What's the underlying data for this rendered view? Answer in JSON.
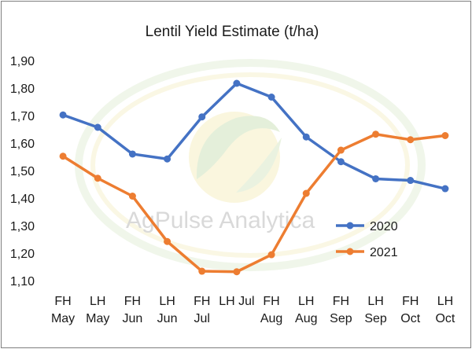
{
  "chart_data": {
    "type": "line",
    "title": "Lentil Yield Estimate  (t/ha)",
    "xlabel": "",
    "ylabel": "",
    "categories": [
      [
        "FH",
        "May"
      ],
      [
        "LH",
        "May"
      ],
      [
        "FH",
        "Jun"
      ],
      [
        "LH",
        "Jun"
      ],
      [
        "FH",
        "Jul"
      ],
      [
        "LH Jul"
      ],
      [
        "FH",
        "Aug"
      ],
      [
        "LH",
        "Aug"
      ],
      [
        "FH",
        "Sep"
      ],
      [
        "LH",
        "Sep"
      ],
      [
        "FH",
        "Oct"
      ],
      [
        "LH",
        "Oct"
      ]
    ],
    "ylim": [
      1.1,
      1.9
    ],
    "yticks": [
      "1,10",
      "1,20",
      "1,30",
      "1,40",
      "1,50",
      "1,60",
      "1,70",
      "1,80",
      "1,90"
    ],
    "grid": false,
    "legend_position": "right",
    "series": [
      {
        "name": "2020",
        "color": "#4472C4",
        "values": [
          1.705,
          1.66,
          1.563,
          1.545,
          1.698,
          1.82,
          1.77,
          1.625,
          1.535,
          1.473,
          1.467,
          1.437
        ]
      },
      {
        "name": "2021",
        "color": "#ED7D31",
        "values": [
          1.555,
          1.475,
          1.41,
          1.245,
          1.137,
          1.135,
          1.197,
          1.42,
          1.577,
          1.635,
          1.615,
          1.63
        ]
      }
    ],
    "watermark": "AgPulse Analytica"
  }
}
